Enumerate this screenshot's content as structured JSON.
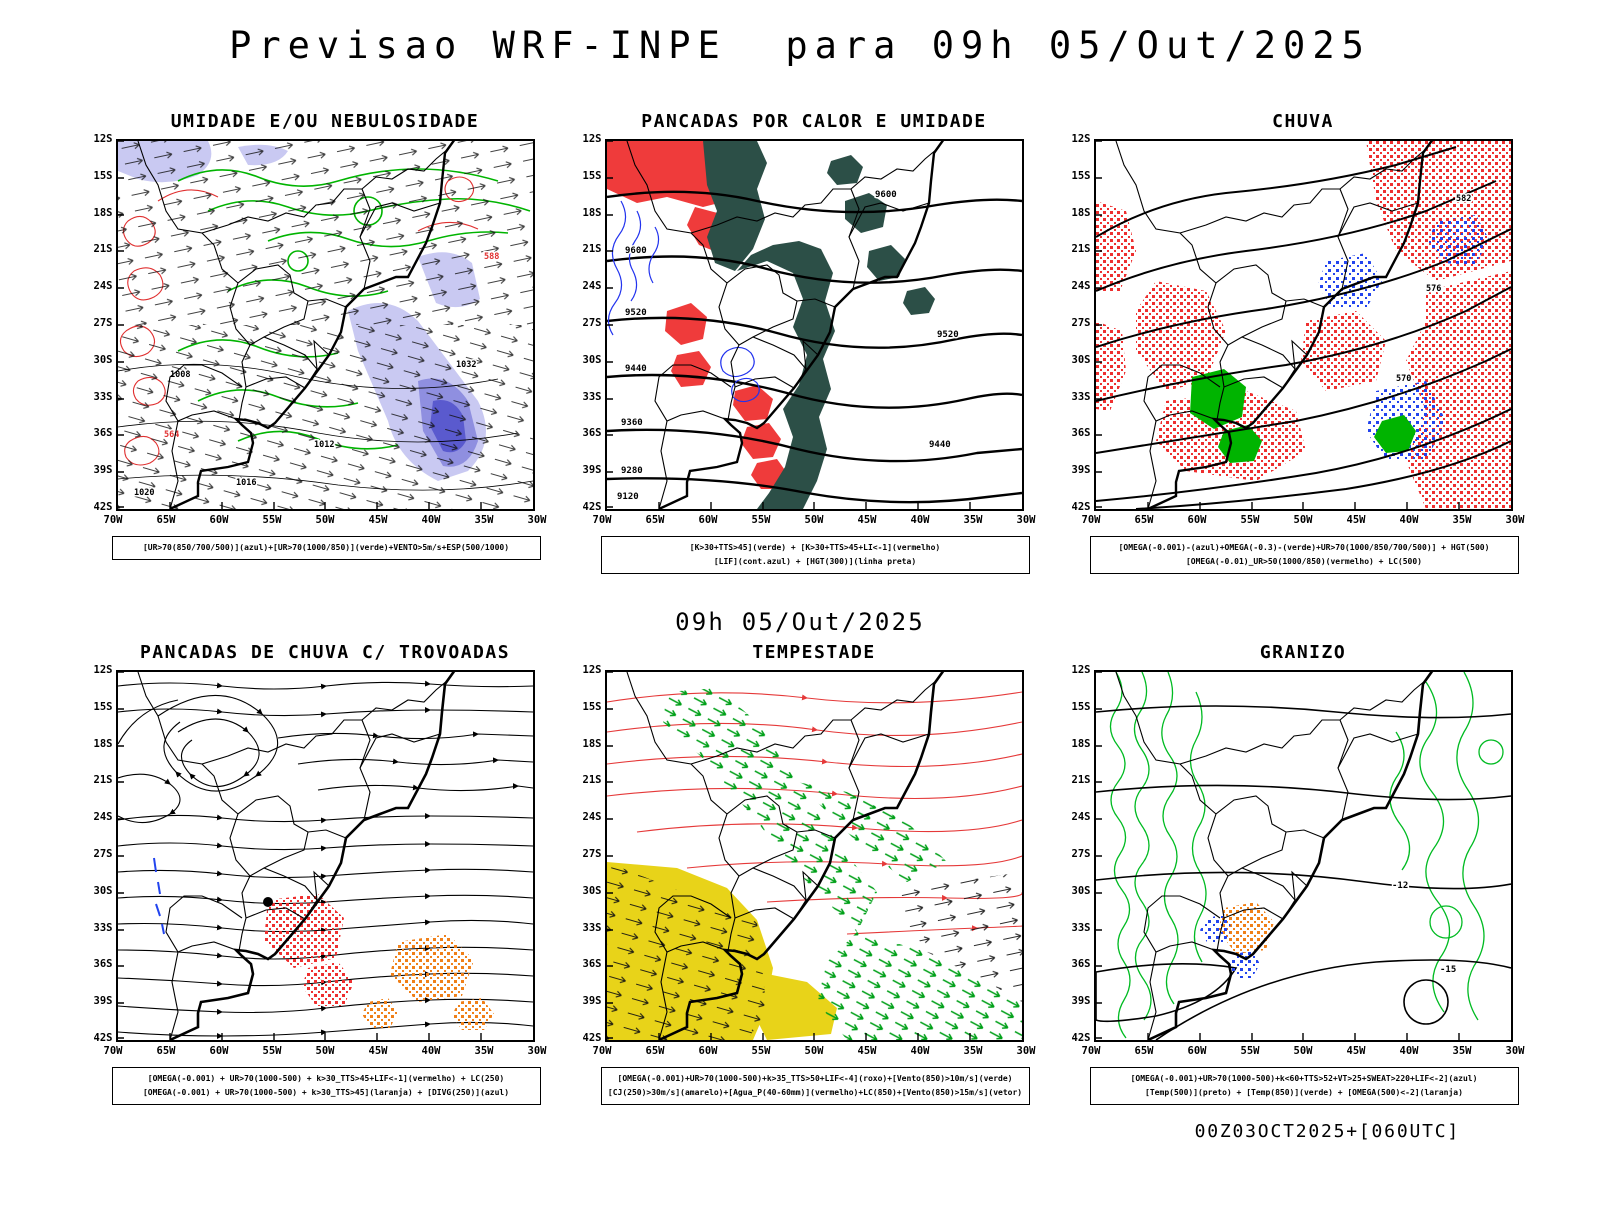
{
  "page": {
    "title": "Previsao WRF-INPE  para 09h 05/Out/2025",
    "mid_label": "09h 05/Out/2025",
    "run_stamp": "00Z03OCT2025+[060UTC]"
  },
  "axes": {
    "lat": [
      "12S",
      "15S",
      "18S",
      "21S",
      "24S",
      "27S",
      "30S",
      "33S",
      "36S",
      "39S",
      "42S"
    ],
    "lon": [
      "70W",
      "65W",
      "60W",
      "55W",
      "50W",
      "45W",
      "40W",
      "35W",
      "30W"
    ]
  },
  "panels": [
    {
      "title": "UMIDADE E/OU NEBULOSIDADE",
      "caption": [
        "[UR>70(850/700/500)](azul)+[UR>70(1000/850)](verde)+VENTO>5m/s+ESP(500/1000)"
      ],
      "map_labels": [
        "1008",
        "1012",
        "1016",
        "1020",
        "1032",
        "564",
        "588"
      ]
    },
    {
      "title": "PANCADAS POR CALOR E UMIDADE",
      "caption": [
        "[K>30+TTS>45](verde) + [K>30+TTS>45+LI<-1](vermelho)",
        "[LIF](cont.azul) + [HGT(300)](linha preta)"
      ],
      "map_labels": [
        "9600",
        "9520",
        "9440",
        "9360",
        "9280",
        "9120",
        "9600",
        "9520",
        "9440"
      ]
    },
    {
      "title": "CHUVA",
      "caption": [
        "[OMEGA(-0.001)-(azul)+OMEGA(-0.3)-(verde)+UR>70(1000/850/700/500)] + HGT(500)",
        "[OMEGA(-0.01)_UR>50(1000/850)(vermelho) + LC(500)"
      ],
      "map_labels": [
        "582",
        "576",
        "570"
      ]
    },
    {
      "title": "PANCADAS DE CHUVA C/ TROVOADAS",
      "caption": [
        "[OMEGA(-0.001) + UR>70(1000-500) + k>30_TTS>45+LIF<-1](vermelho) + LC(250)",
        "[OMEGA(-0.001) + UR>70(1000-500) + k>30_TTS>45](laranja) + [DIVG(250)](azul)"
      ],
      "map_labels": []
    },
    {
      "title": "TEMPESTADE",
      "caption": [
        "[OMEGA(-0.001)+UR>70(1000-500)+k>35_TTS>50+LIF<-4](roxo)+[Vento(850)>10m/s](verde)",
        "[CJ(250)>30m/s](amarelo)+[Agua_P(40-60mm)](vermelho)+LC(850)+[Vento(850)>15m/s](vetor)"
      ],
      "map_labels": []
    },
    {
      "title": "GRANIZO",
      "caption": [
        "[OMEGA(-0.001)+UR>70(1000-500)+k<60+TTS>52+VT>25+SWEAT>220+LIF<-2](azul)",
        "[Temp(500)](preto) + [Temp(850)](verde) + [OMEGA(500)<-2](laranja)"
      ],
      "map_labels": [
        "-12",
        "-15"
      ]
    }
  ],
  "colors": {
    "green": "#00b400",
    "red": "#ee3333",
    "blue": "#2233dd",
    "lavender": "#c9c9f2",
    "purple_blue": "#5a5ace",
    "dark_teal": "#2c4f47",
    "orange": "#f08018",
    "yellow": "#e8d319",
    "black": "#000000"
  }
}
